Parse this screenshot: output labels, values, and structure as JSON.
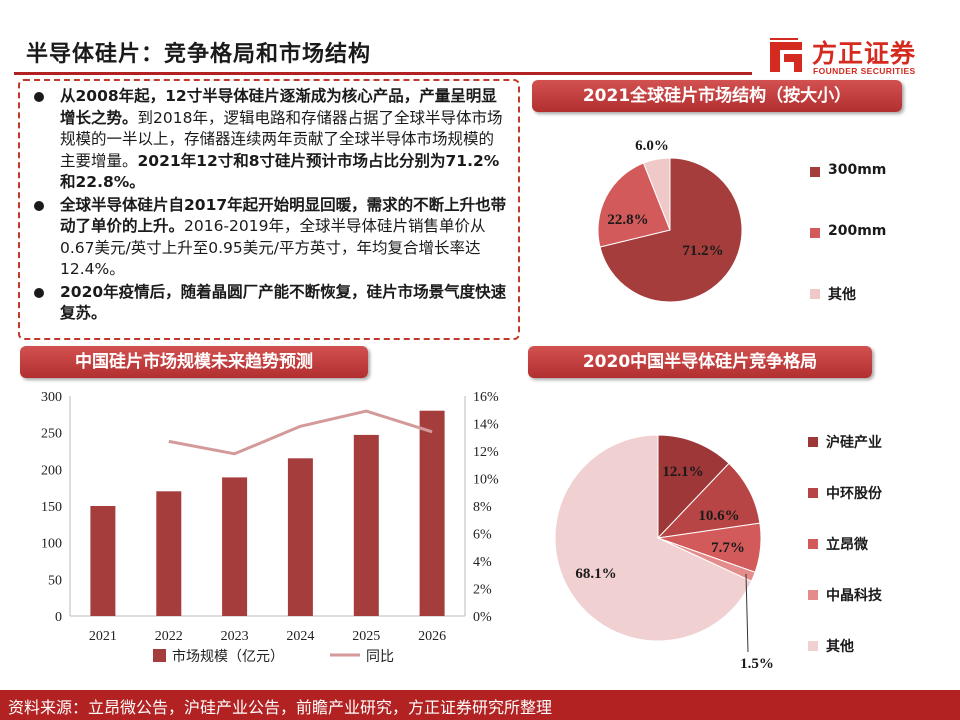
{
  "page": {
    "title": "半导体硅片：竞争格局和市场结构",
    "logo_cn": "方正证券",
    "logo_en": "FOUNDER SECURITIES",
    "source": "资料来源：立昂微公告，沪硅产业公告，前瞻产业研究，方正证券研究所整理",
    "colors": {
      "accent": "#b22222",
      "dark_red": "#a63d3d",
      "mid_red": "#d25a5a",
      "light_pink": "#efc8c8",
      "line_pink": "#d49a9a"
    }
  },
  "bullets": [
    {
      "bold": "从2008年起，12寸半导体硅片逐渐成为核心产品，产量呈明显增长之势。",
      "plain": "到2018年，逻辑电路和存储器占据了全球半导体市场规模的一半以上，存储器连续两年贡献了全球半导体市场规模的主要增量。",
      "bold2": "2021年12寸和8寸硅片预计市场占比分别为71.2%和22.8%。"
    },
    {
      "bold": "全球半导体硅片自2017年起开始明显回暖，需求的不断上升也带动了单价的上升。",
      "plain": "2016-2019年，全球半导体硅片销售单价从0.67美元/英寸上升至0.95美元/平方英寸，年均复合增长率达12.4%。",
      "bold2": ""
    },
    {
      "bold": "2020年疫情后，随着晶圆厂产能不断恢复，硅片市场景气度快速复苏。",
      "plain": "",
      "bold2": ""
    }
  ],
  "sections": {
    "global_structure": "2021全球硅片市场结构（按大小）",
    "china_forecast": "中国硅片市场规模未来趋势预测",
    "china_competition": "2020中国半导体硅片竞争格局"
  },
  "chart_data": [
    {
      "type": "pie",
      "title": "2021全球硅片市场结构（按大小）",
      "labels": [
        "300mm",
        "200mm",
        "其他"
      ],
      "values": [
        71.2,
        22.8,
        6.0
      ],
      "value_labels": [
        "71.2%",
        "22.8%",
        "6.0%"
      ],
      "colors": [
        "#a63d3d",
        "#d25a5a",
        "#efc8c8"
      ],
      "legend": "right"
    },
    {
      "type": "bar",
      "title": "中国硅片市场规模未来趋势预测",
      "categories": [
        "2021",
        "2022",
        "2023",
        "2024",
        "2025",
        "2026"
      ],
      "series": [
        {
          "name": "市场规模（亿元）",
          "type": "bar",
          "axis": "left",
          "values": [
            150,
            170,
            189,
            215,
            247,
            280
          ],
          "color": "#a63d3d"
        },
        {
          "name": "同比",
          "type": "line",
          "axis": "right",
          "values": [
            null,
            12.7,
            11.8,
            13.8,
            14.9,
            13.4
          ],
          "color": "#d49a9a"
        }
      ],
      "ylim_left": [
        0,
        300
      ],
      "yticks_left": [
        "0",
        "50",
        "100",
        "150",
        "200",
        "250",
        "300"
      ],
      "ylim_right": [
        0,
        16
      ],
      "yticks_right": [
        "0%",
        "2%",
        "4%",
        "6%",
        "8%",
        "10%",
        "12%",
        "14%",
        "16%"
      ],
      "legend": "bottom"
    },
    {
      "type": "pie",
      "title": "2020中国半导体硅片竞争格局",
      "labels": [
        "沪硅产业",
        "中环股份",
        "立昂微",
        "中晶科技",
        "其他"
      ],
      "values": [
        12.1,
        10.6,
        7.7,
        1.5,
        68.1
      ],
      "value_labels": [
        "12.1%",
        "10.6%",
        "7.7%",
        "1.5%",
        "68.1%"
      ],
      "colors": [
        "#9e3737",
        "#b84545",
        "#d25a5a",
        "#e48b8b",
        "#f0d0d0"
      ],
      "legend": "right"
    }
  ]
}
